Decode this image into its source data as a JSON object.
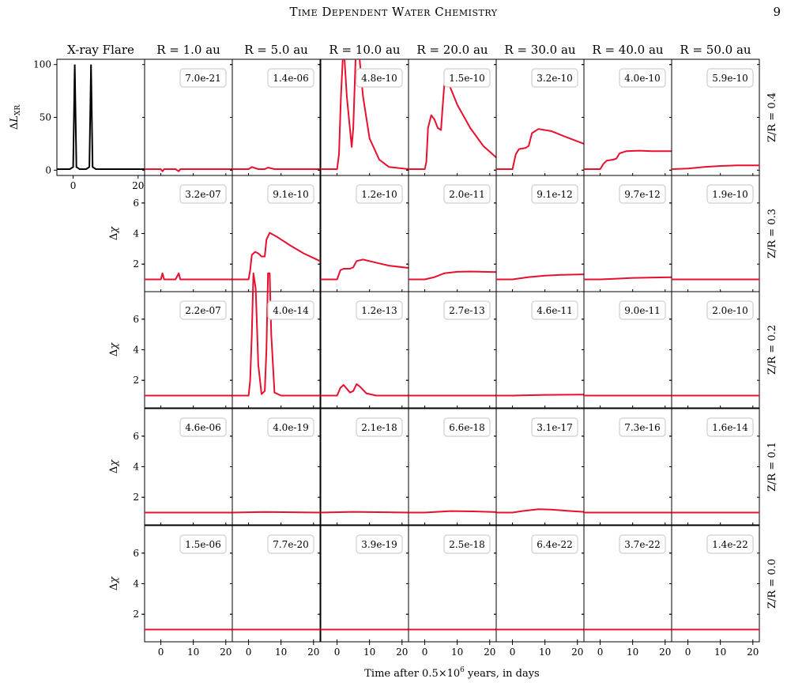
{
  "header": {
    "title": "Time Dependent Water Chemistry",
    "page_number": "9"
  },
  "chart_data": {
    "type": "line",
    "xlabel": "Time after 0.5×10⁶ years, in days",
    "xlim": [
      -5,
      22
    ],
    "xticks": [
      0,
      10,
      20
    ],
    "flare_xticks": [
      0,
      20
    ],
    "line_colors": {
      "flare": "#000000",
      "response": "#e8102e"
    },
    "column_titles": [
      "X-ray Flare",
      "R = 1.0 au",
      "R = 5.0 au",
      "R = 10.0 au",
      "R = 20.0 au",
      "R = 30.0 au",
      "R = 40.0 au",
      "R = 50.0 au"
    ],
    "row_titles": [
      "Z/R = 0.4",
      "Z/R = 0.3",
      "Z/R = 0.2",
      "Z/R = 0.1",
      "Z/R = 0.0"
    ],
    "flare_panel": {
      "ylabel": "ΔL_XR",
      "ylim": [
        -5,
        105
      ],
      "yticks": [
        0,
        50,
        100
      ],
      "x": [
        -5,
        -1,
        0,
        0.5,
        1,
        2,
        4,
        5,
        5.5,
        6,
        7,
        10,
        22
      ],
      "y": [
        1,
        1,
        3,
        100,
        3,
        1,
        1,
        3,
        100,
        3,
        1,
        1,
        1
      ]
    },
    "response_ylabel": "Δχ",
    "response_ylim": [
      0.2,
      7.8
    ],
    "response_yticks": [
      2,
      4,
      6
    ],
    "panels": [
      [
        null,
        {
          "label": "7.0e-21",
          "ylim": [
            -5,
            105
          ],
          "x": [
            -5,
            0,
            0.5,
            1,
            4.5,
            5.5,
            6,
            22
          ],
          "y": [
            1,
            1,
            -1,
            1,
            1,
            -1,
            1,
            1
          ]
        },
        {
          "label": "1.4e-06",
          "ylim": [
            -5,
            105
          ],
          "x": [
            -5,
            0,
            1,
            3,
            5,
            6,
            8,
            22
          ],
          "y": [
            1,
            1,
            3,
            1,
            1,
            2.5,
            1,
            1
          ]
        },
        {
          "label": "4.8e-10",
          "ylim": [
            -5,
            105
          ],
          "x": [
            -5,
            0,
            0.6,
            1.2,
            2,
            3,
            4.5,
            5,
            5.7,
            6.5,
            8,
            10,
            13,
            16,
            22
          ],
          "y": [
            1,
            1,
            15,
            70,
            120,
            70,
            22,
            40,
            105,
            120,
            70,
            30,
            10,
            3,
            1
          ]
        },
        {
          "label": "1.5e-10",
          "ylim": [
            -5,
            105
          ],
          "x": [
            -5,
            0,
            0.5,
            1,
            2,
            3,
            4,
            5,
            5.5,
            6,
            7,
            10,
            14,
            18,
            22
          ],
          "y": [
            1,
            1,
            8,
            40,
            52,
            48,
            40,
            38,
            60,
            80,
            85,
            62,
            40,
            23,
            12
          ]
        },
        {
          "label": "3.2e-10",
          "ylim": [
            -5,
            105
          ],
          "x": [
            -5,
            0,
            1,
            2,
            4,
            5,
            6,
            8,
            12,
            16,
            22
          ],
          "y": [
            1,
            1,
            15,
            20,
            21,
            23,
            35,
            39,
            37,
            32,
            25
          ]
        },
        {
          "label": "4.0e-10",
          "ylim": [
            -5,
            105
          ],
          "x": [
            -5,
            0,
            1,
            2,
            4,
            5,
            6,
            8,
            12,
            16,
            22
          ],
          "y": [
            1,
            1,
            6,
            9,
            10,
            11,
            16,
            18,
            18.5,
            18,
            18
          ]
        },
        {
          "label": "5.9e-10",
          "ylim": [
            -5,
            105
          ],
          "x": [
            -5,
            0,
            5,
            10,
            15,
            22
          ],
          "y": [
            1,
            1.5,
            3,
            4,
            4.5,
            4.5
          ]
        }
      ],
      [
        null,
        {
          "label": "3.2e-07",
          "x": [
            -5,
            0,
            0.5,
            1,
            4.5,
            5.5,
            6,
            22
          ],
          "y": [
            1,
            1,
            1.4,
            1,
            1,
            1.4,
            1,
            1
          ]
        },
        {
          "label": "9.1e-10",
          "x": [
            -5,
            0,
            0.5,
            1,
            2,
            3,
            4,
            5,
            5.5,
            6.5,
            9,
            13,
            17,
            22
          ],
          "y": [
            1,
            1,
            1.6,
            2.6,
            2.8,
            2.7,
            2.5,
            2.5,
            3.6,
            4.05,
            3.75,
            3.2,
            2.7,
            2.2
          ]
        },
        {
          "label": "1.2e-10",
          "x": [
            -5,
            0,
            1,
            2,
            4,
            5,
            6,
            8,
            12,
            16,
            22
          ],
          "y": [
            1,
            1,
            1.6,
            1.7,
            1.7,
            1.8,
            2.2,
            2.3,
            2.1,
            1.9,
            1.75
          ]
        },
        {
          "label": "2.0e-11",
          "x": [
            -5,
            0,
            3,
            6,
            10,
            14,
            18,
            22
          ],
          "y": [
            1,
            1,
            1.15,
            1.4,
            1.5,
            1.52,
            1.5,
            1.48
          ]
        },
        {
          "label": "9.1e-12",
          "x": [
            -5,
            0,
            5,
            10,
            15,
            22
          ],
          "y": [
            1,
            1,
            1.15,
            1.25,
            1.3,
            1.33
          ]
        },
        {
          "label": "9.7e-12",
          "x": [
            -5,
            0,
            5,
            10,
            15,
            22
          ],
          "y": [
            1,
            1,
            1.05,
            1.1,
            1.12,
            1.14
          ]
        },
        {
          "label": "1.9e-10",
          "x": [
            -5,
            22
          ],
          "y": [
            1,
            1
          ]
        }
      ],
      [
        null,
        {
          "label": "2.2e-07",
          "x": [
            -5,
            22
          ],
          "y": [
            1,
            1
          ]
        },
        {
          "label": "4.0e-14",
          "x": [
            -5,
            0,
            0.5,
            1,
            1.5,
            2.2,
            3,
            4,
            5,
            5.5,
            6,
            6.5,
            7,
            8,
            10,
            22
          ],
          "y": [
            1,
            1,
            2,
            5,
            9,
            8,
            3,
            1.1,
            1.3,
            4,
            9,
            9,
            5,
            1.2,
            1,
            1
          ]
        },
        {
          "label": "1.2e-13",
          "x": [
            -5,
            0,
            1,
            2,
            4,
            5,
            6,
            7,
            9,
            12,
            22
          ],
          "y": [
            1,
            1,
            1.5,
            1.7,
            1.2,
            1.3,
            1.75,
            1.6,
            1.15,
            1,
            1
          ]
        },
        {
          "label": "2.7e-13",
          "x": [
            -5,
            22
          ],
          "y": [
            1,
            1
          ]
        },
        {
          "label": "4.6e-11",
          "x": [
            -5,
            0,
            10,
            22
          ],
          "y": [
            1,
            1,
            1.05,
            1.07
          ]
        },
        {
          "label": "9.0e-11",
          "x": [
            -5,
            22
          ],
          "y": [
            1,
            1
          ]
        },
        {
          "label": "2.0e-10",
          "x": [
            -5,
            22
          ],
          "y": [
            1,
            1
          ]
        }
      ],
      [
        null,
        {
          "label": "4.6e-06",
          "x": [
            -5,
            22
          ],
          "y": [
            1,
            1
          ]
        },
        {
          "label": "4.0e-19",
          "x": [
            -5,
            5,
            22
          ],
          "y": [
            1,
            1.04,
            1
          ]
        },
        {
          "label": "2.1e-18",
          "x": [
            -5,
            5,
            22
          ],
          "y": [
            1,
            1.05,
            1
          ]
        },
        {
          "label": "6.6e-18",
          "x": [
            -5,
            0,
            8,
            15,
            22
          ],
          "y": [
            1,
            1,
            1.1,
            1.08,
            1.03
          ]
        },
        {
          "label": "3.1e-17",
          "x": [
            -5,
            0,
            3,
            8,
            12,
            18,
            22
          ],
          "y": [
            1,
            1,
            1.1,
            1.22,
            1.2,
            1.1,
            1.05
          ]
        },
        {
          "label": "7.3e-16",
          "x": [
            -5,
            22
          ],
          "y": [
            1,
            1
          ]
        },
        {
          "label": "1.6e-14",
          "x": [
            -5,
            22
          ],
          "y": [
            1,
            1
          ]
        }
      ],
      [
        null,
        {
          "label": "1.5e-06",
          "x": [
            -5,
            22
          ],
          "y": [
            1,
            1
          ]
        },
        {
          "label": "7.7e-20",
          "x": [
            -5,
            22
          ],
          "y": [
            1,
            1
          ]
        },
        {
          "label": "3.9e-19",
          "x": [
            -5,
            22
          ],
          "y": [
            1,
            1
          ]
        },
        {
          "label": "2.5e-18",
          "x": [
            -5,
            22
          ],
          "y": [
            1,
            1
          ]
        },
        {
          "label": "6.4e-22",
          "x": [
            -5,
            22
          ],
          "y": [
            1,
            1
          ]
        },
        {
          "label": "3.7e-22",
          "x": [
            -5,
            22
          ],
          "y": [
            1,
            1
          ]
        },
        {
          "label": "1.4e-22",
          "x": [
            -5,
            22
          ],
          "y": [
            1,
            1
          ]
        }
      ]
    ]
  }
}
